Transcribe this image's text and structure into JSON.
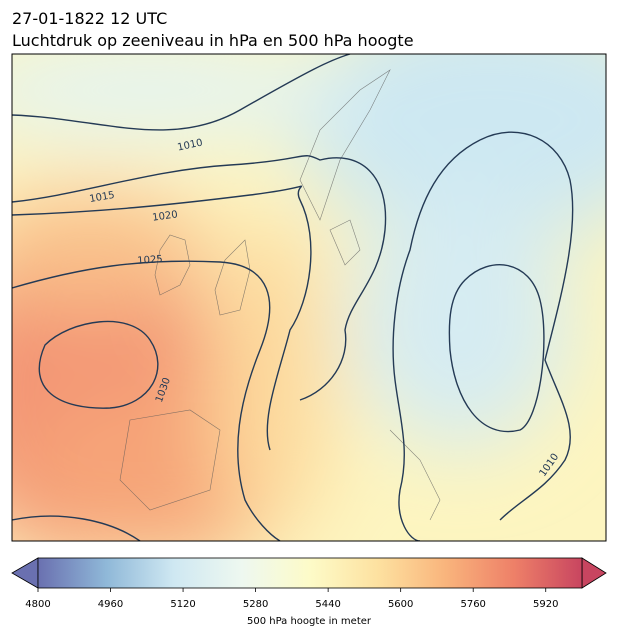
{
  "title": "27-01-1822 12 UTC",
  "subtitle": "Luchtdruk op zeeniveau in hPa en 500 hPa hoogte",
  "isobar_labels": [
    1010,
    1015,
    1020,
    1025,
    1030,
    1010
  ],
  "colorbar": {
    "label": "500 hPa hoogte in meter",
    "lim": [
      4800,
      6000
    ],
    "ticks": [
      4800,
      4960,
      5120,
      5280,
      5440,
      5600,
      5760,
      5920
    ],
    "colors": [
      "#6a70b0",
      "#8fb8d8",
      "#cfe8f2",
      "#eef8f0",
      "#fdfbc8",
      "#fde1a0",
      "#f9b47c",
      "#ee8068",
      "#c84560"
    ]
  }
}
